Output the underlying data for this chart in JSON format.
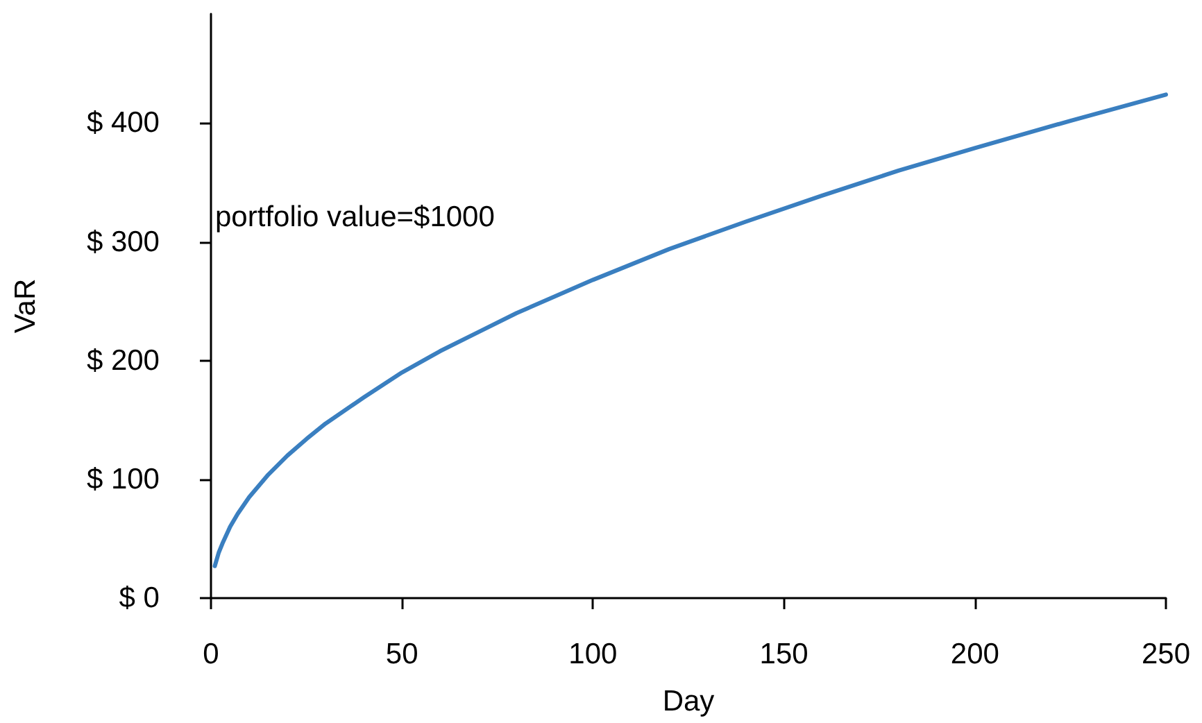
{
  "chart_data": {
    "type": "line",
    "xlabel": "Day",
    "ylabel": "VaR",
    "annotations": [
      "portfolio value=$1000"
    ],
    "x": [
      1,
      2,
      3,
      5,
      7,
      10,
      15,
      20,
      25,
      30,
      40,
      50,
      60,
      70,
      80,
      90,
      100,
      120,
      140,
      160,
      180,
      200,
      225,
      250
    ],
    "series": [
      {
        "color": "#3a7fc0",
        "values": [
          27,
          38,
          46,
          60,
          71,
          85,
          104,
          120,
          134,
          147,
          169,
          190,
          208,
          224,
          240,
          254,
          268,
          294,
          317,
          339,
          360,
          379,
          402,
          424
        ]
      }
    ],
    "xlim": [
      0,
      250
    ],
    "xticks": [
      0,
      50,
      100,
      150,
      200,
      250
    ],
    "ylim": [
      0,
      492
    ],
    "yticks": [
      {
        "value": 0,
        "label": "$ 0"
      },
      {
        "value": 100,
        "label": "$ 100"
      },
      {
        "value": 200,
        "label": "$ 200"
      },
      {
        "value": 300,
        "label": "$ 300"
      },
      {
        "value": 400,
        "label": "$ 400"
      }
    ],
    "grid": false,
    "marker": "none",
    "line_style": "solid"
  }
}
